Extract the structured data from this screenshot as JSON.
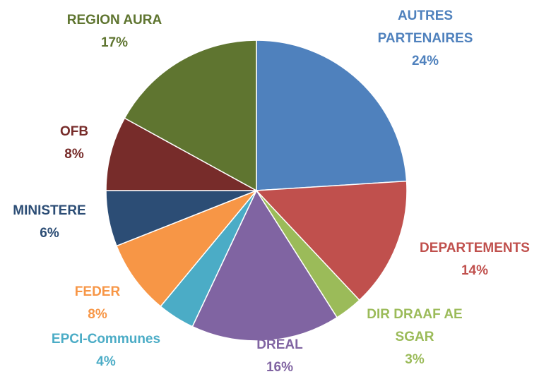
{
  "chart_data": {
    "type": "pie",
    "categories": [
      "AUTRES PARTENAIRES",
      "DEPARTEMENTS",
      "DIR DRAAF AE SGAR",
      "DREAL",
      "EPCI-Communes",
      "FEDER",
      "MINISTERE",
      "OFB",
      "REGION AURA"
    ],
    "values": [
      24,
      14,
      3,
      16,
      4,
      8,
      6,
      8,
      17
    ],
    "value_labels": [
      "24%",
      "14%",
      "3%",
      "16%",
      "4%",
      "8%",
      "6%",
      "8%",
      "17%"
    ],
    "colors": [
      "#4f81bd",
      "#c0504d",
      "#9bbb59",
      "#8064a2",
      "#4bacc6",
      "#f79646",
      "#2c4d75",
      "#772c2a",
      "#5f7530"
    ]
  }
}
